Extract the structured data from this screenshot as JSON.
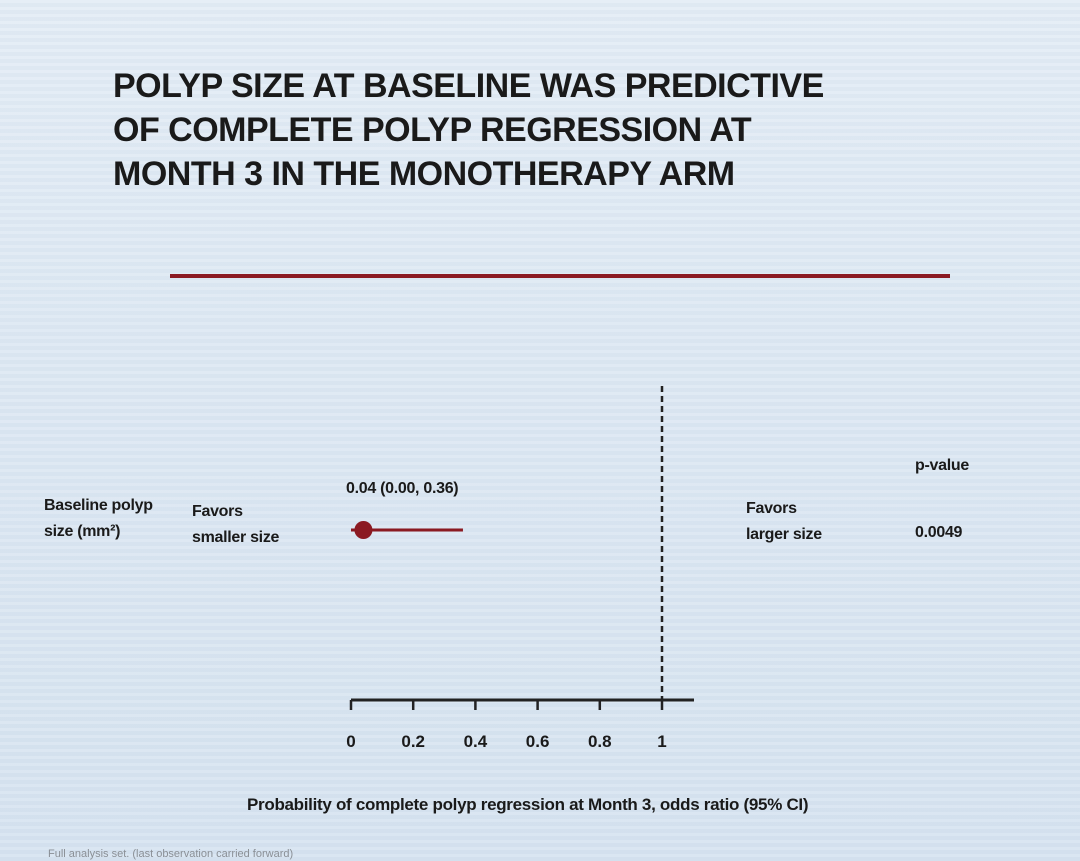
{
  "title_lines": [
    "POLYP SIZE AT BASELINE WAS PREDICTIVE",
    "OF COMPLETE POLYP REGRESSION AT",
    "MONTH 3 IN THE MONOTHERAPY ARM"
  ],
  "row": {
    "label_line1": "Baseline polyp",
    "label_line2": "size (mm²)",
    "estimate_text": "0.04 (0.00, 0.36)",
    "p_value": "0.0049"
  },
  "favors_left": {
    "line1": "Favors",
    "line2": "smaller size"
  },
  "favors_right": {
    "line1": "Favors",
    "line2": "larger size"
  },
  "pvalue_header": "p-value",
  "footnote": "Full analysis set. (last observation carried forward)",
  "colors": {
    "accent": "#8b1a22",
    "text": "#1a1a1a"
  },
  "chart_data": {
    "type": "forest",
    "xlabel": "Probability of complete polyp regression at Month 3, odds ratio (95% CI)",
    "xlim": [
      0,
      1
    ],
    "ticks": [
      0,
      0.2,
      0.4,
      0.6,
      0.8,
      1
    ],
    "tick_labels": [
      "0",
      "0.2",
      "0.4",
      "0.6",
      "0.8",
      "1"
    ],
    "reference_line": 1,
    "points": [
      {
        "label": "Baseline polyp size (mm²)",
        "estimate": 0.04,
        "ci_low": 0.0,
        "ci_high": 0.36,
        "p_value": "0.0049"
      }
    ]
  }
}
